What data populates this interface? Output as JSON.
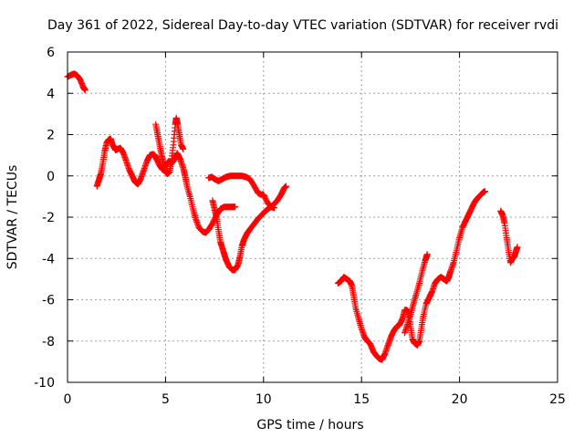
{
  "chart_data": {
    "type": "scatter",
    "title": "Day 361 of 2022, Sidereal Day-to-day VTEC variation (SDTVAR) for receiver rvdi",
    "xlabel": "GPS time / hours",
    "ylabel": "SDTVAR / TECUs",
    "xlim": [
      0,
      25
    ],
    "ylim": [
      -10,
      6
    ],
    "xticks": [
      0,
      5,
      10,
      15,
      20,
      25
    ],
    "yticks": [
      -10,
      -8,
      -6,
      -4,
      -2,
      0,
      2,
      4,
      6
    ],
    "grid": true,
    "marker": "+",
    "color": "#ff0000",
    "series": [
      {
        "segments": [
          [
            [
              0.0,
              4.8
            ],
            [
              0.2,
              4.9
            ],
            [
              0.35,
              4.95
            ],
            [
              0.5,
              4.85
            ],
            [
              0.65,
              4.65
            ],
            [
              0.8,
              4.3
            ],
            [
              0.9,
              4.15
            ]
          ],
          [
            [
              1.5,
              -0.5
            ],
            [
              1.6,
              -0.2
            ],
            [
              1.7,
              0.1
            ],
            [
              1.8,
              0.6
            ],
            [
              1.9,
              1.2
            ],
            [
              2.0,
              1.6
            ],
            [
              2.1,
              1.75
            ],
            [
              2.2,
              1.8
            ],
            [
              2.3,
              1.5
            ],
            [
              2.45,
              1.25
            ],
            [
              2.55,
              1.3
            ],
            [
              2.7,
              1.35
            ],
            [
              2.85,
              1.1
            ],
            [
              3.0,
              0.7
            ],
            [
              3.15,
              0.3
            ],
            [
              3.3,
              0.0
            ],
            [
              3.45,
              -0.3
            ],
            [
              3.6,
              -0.4
            ],
            [
              3.75,
              -0.1
            ],
            [
              3.9,
              0.3
            ],
            [
              4.05,
              0.7
            ],
            [
              4.2,
              1.0
            ],
            [
              4.35,
              1.05
            ],
            [
              4.45,
              1.0
            ],
            [
              4.55,
              0.8
            ],
            [
              4.7,
              0.5
            ],
            [
              4.85,
              0.3
            ],
            [
              5.0,
              0.5
            ],
            [
              5.15,
              0.7
            ],
            [
              5.3,
              0.6
            ],
            [
              5.45,
              0.8
            ],
            [
              5.6,
              1.1
            ],
            [
              5.75,
              0.8
            ],
            [
              5.9,
              0.4
            ],
            [
              6.0,
              0.0
            ],
            [
              6.1,
              -0.5
            ],
            [
              6.25,
              -1.0
            ],
            [
              6.4,
              -1.6
            ],
            [
              6.55,
              -2.1
            ],
            [
              6.7,
              -2.5
            ],
            [
              6.9,
              -2.7
            ],
            [
              7.05,
              -2.75
            ],
            [
              7.2,
              -2.6
            ],
            [
              7.4,
              -2.3
            ],
            [
              7.6,
              -1.9
            ],
            [
              7.8,
              -1.6
            ],
            [
              8.0,
              -1.5
            ],
            [
              8.2,
              -1.5
            ],
            [
              8.4,
              -1.5
            ],
            [
              8.55,
              -1.5
            ]
          ],
          [
            [
              4.5,
              2.5
            ],
            [
              4.6,
              2.0
            ],
            [
              4.7,
              1.5
            ],
            [
              4.8,
              1.0
            ],
            [
              4.9,
              0.6
            ],
            [
              5.0,
              0.2
            ],
            [
              5.1,
              0.1
            ],
            [
              5.2,
              0.2
            ],
            [
              5.3,
              0.7
            ],
            [
              5.4,
              1.5
            ],
            [
              5.5,
              2.5
            ],
            [
              5.55,
              2.8
            ],
            [
              5.62,
              2.5
            ],
            [
              5.7,
              2.0
            ],
            [
              5.8,
              1.5
            ],
            [
              5.9,
              1.3
            ]
          ],
          [
            [
              7.4,
              -1.2
            ],
            [
              7.5,
              -1.6
            ],
            [
              7.6,
              -2.0
            ],
            [
              7.7,
              -2.6
            ],
            [
              7.8,
              -3.2
            ],
            [
              7.9,
              -3.5
            ],
            [
              8.0,
              -3.8
            ],
            [
              8.1,
              -4.1
            ],
            [
              8.25,
              -4.4
            ],
            [
              8.4,
              -4.55
            ],
            [
              8.55,
              -4.55
            ],
            [
              8.7,
              -4.3
            ],
            [
              8.8,
              -3.9
            ],
            [
              8.9,
              -3.4
            ],
            [
              9.0,
              -3.1
            ],
            [
              9.15,
              -2.8
            ],
            [
              9.3,
              -2.6
            ],
            [
              9.5,
              -2.35
            ],
            [
              9.7,
              -2.1
            ],
            [
              9.9,
              -1.9
            ],
            [
              10.1,
              -1.7
            ],
            [
              10.3,
              -1.55
            ],
            [
              10.5,
              -1.4
            ],
            [
              10.7,
              -1.2
            ],
            [
              10.9,
              -0.9
            ],
            [
              11.05,
              -0.6
            ],
            [
              11.15,
              -0.5
            ]
          ],
          [
            [
              7.2,
              -0.1
            ],
            [
              7.35,
              -0.05
            ],
            [
              7.5,
              -0.15
            ],
            [
              7.7,
              -0.25
            ],
            [
              7.9,
              -0.15
            ],
            [
              8.1,
              -0.05
            ],
            [
              8.3,
              0.0
            ],
            [
              8.5,
              0.0
            ],
            [
              8.7,
              0.0
            ],
            [
              8.9,
              0.0
            ],
            [
              9.1,
              -0.05
            ],
            [
              9.3,
              -0.15
            ],
            [
              9.5,
              -0.45
            ],
            [
              9.7,
              -0.8
            ],
            [
              9.85,
              -0.9
            ],
            [
              10.0,
              -0.9
            ],
            [
              10.2,
              -1.3
            ],
            [
              10.4,
              -1.5
            ],
            [
              10.55,
              -1.55
            ]
          ],
          [
            [
              13.8,
              -5.2
            ],
            [
              13.95,
              -5.1
            ],
            [
              14.1,
              -4.9
            ],
            [
              14.25,
              -5.0
            ],
            [
              14.4,
              -5.1
            ],
            [
              14.5,
              -5.3
            ],
            [
              14.6,
              -5.8
            ],
            [
              14.7,
              -6.4
            ],
            [
              14.85,
              -6.9
            ],
            [
              15.0,
              -7.4
            ],
            [
              15.15,
              -7.8
            ],
            [
              15.3,
              -8.0
            ],
            [
              15.45,
              -8.15
            ],
            [
              15.6,
              -8.5
            ],
            [
              15.75,
              -8.7
            ],
            [
              15.9,
              -8.85
            ],
            [
              16.05,
              -8.9
            ],
            [
              16.2,
              -8.6
            ],
            [
              16.35,
              -8.2
            ],
            [
              16.5,
              -7.8
            ],
            [
              16.65,
              -7.5
            ],
            [
              16.8,
              -7.3
            ],
            [
              16.95,
              -7.2
            ],
            [
              17.1,
              -6.9
            ],
            [
              17.2,
              -6.5
            ],
            [
              17.3,
              -6.5
            ],
            [
              17.4,
              -6.6
            ],
            [
              17.5,
              -7.3
            ],
            [
              17.6,
              -7.9
            ],
            [
              17.7,
              -8.1
            ],
            [
              17.85,
              -8.2
            ],
            [
              17.95,
              -8.0
            ],
            [
              18.05,
              -7.4
            ],
            [
              18.15,
              -6.8
            ],
            [
              18.3,
              -6.2
            ],
            [
              18.45,
              -5.9
            ],
            [
              18.6,
              -5.6
            ],
            [
              18.75,
              -5.2
            ],
            [
              18.9,
              -5.0
            ],
            [
              19.05,
              -4.9
            ],
            [
              19.2,
              -5.0
            ],
            [
              19.35,
              -5.1
            ],
            [
              19.45,
              -4.9
            ],
            [
              19.55,
              -4.6
            ],
            [
              19.7,
              -4.2
            ],
            [
              19.85,
              -3.6
            ],
            [
              20.0,
              -3.0
            ],
            [
              20.15,
              -2.5
            ],
            [
              20.3,
              -2.2
            ],
            [
              20.45,
              -1.9
            ],
            [
              20.6,
              -1.6
            ],
            [
              20.75,
              -1.3
            ],
            [
              20.9,
              -1.1
            ],
            [
              21.05,
              -0.95
            ],
            [
              21.2,
              -0.8
            ],
            [
              21.3,
              -0.75
            ]
          ],
          [
            [
              17.2,
              -7.6
            ],
            [
              17.35,
              -7.2
            ],
            [
              17.5,
              -6.7
            ],
            [
              17.65,
              -6.2
            ],
            [
              17.8,
              -5.7
            ],
            [
              17.95,
              -5.2
            ],
            [
              18.1,
              -4.6
            ],
            [
              18.25,
              -4.1
            ],
            [
              18.35,
              -3.8
            ]
          ],
          [
            [
              22.1,
              -1.7
            ],
            [
              22.2,
              -1.9
            ],
            [
              22.3,
              -2.3
            ],
            [
              22.4,
              -3.0
            ],
            [
              22.5,
              -3.6
            ],
            [
              22.6,
              -4.2
            ],
            [
              22.7,
              -4.0
            ],
            [
              22.8,
              -3.9
            ],
            [
              22.9,
              -3.6
            ],
            [
              22.95,
              -3.45
            ]
          ]
        ]
      }
    ]
  }
}
